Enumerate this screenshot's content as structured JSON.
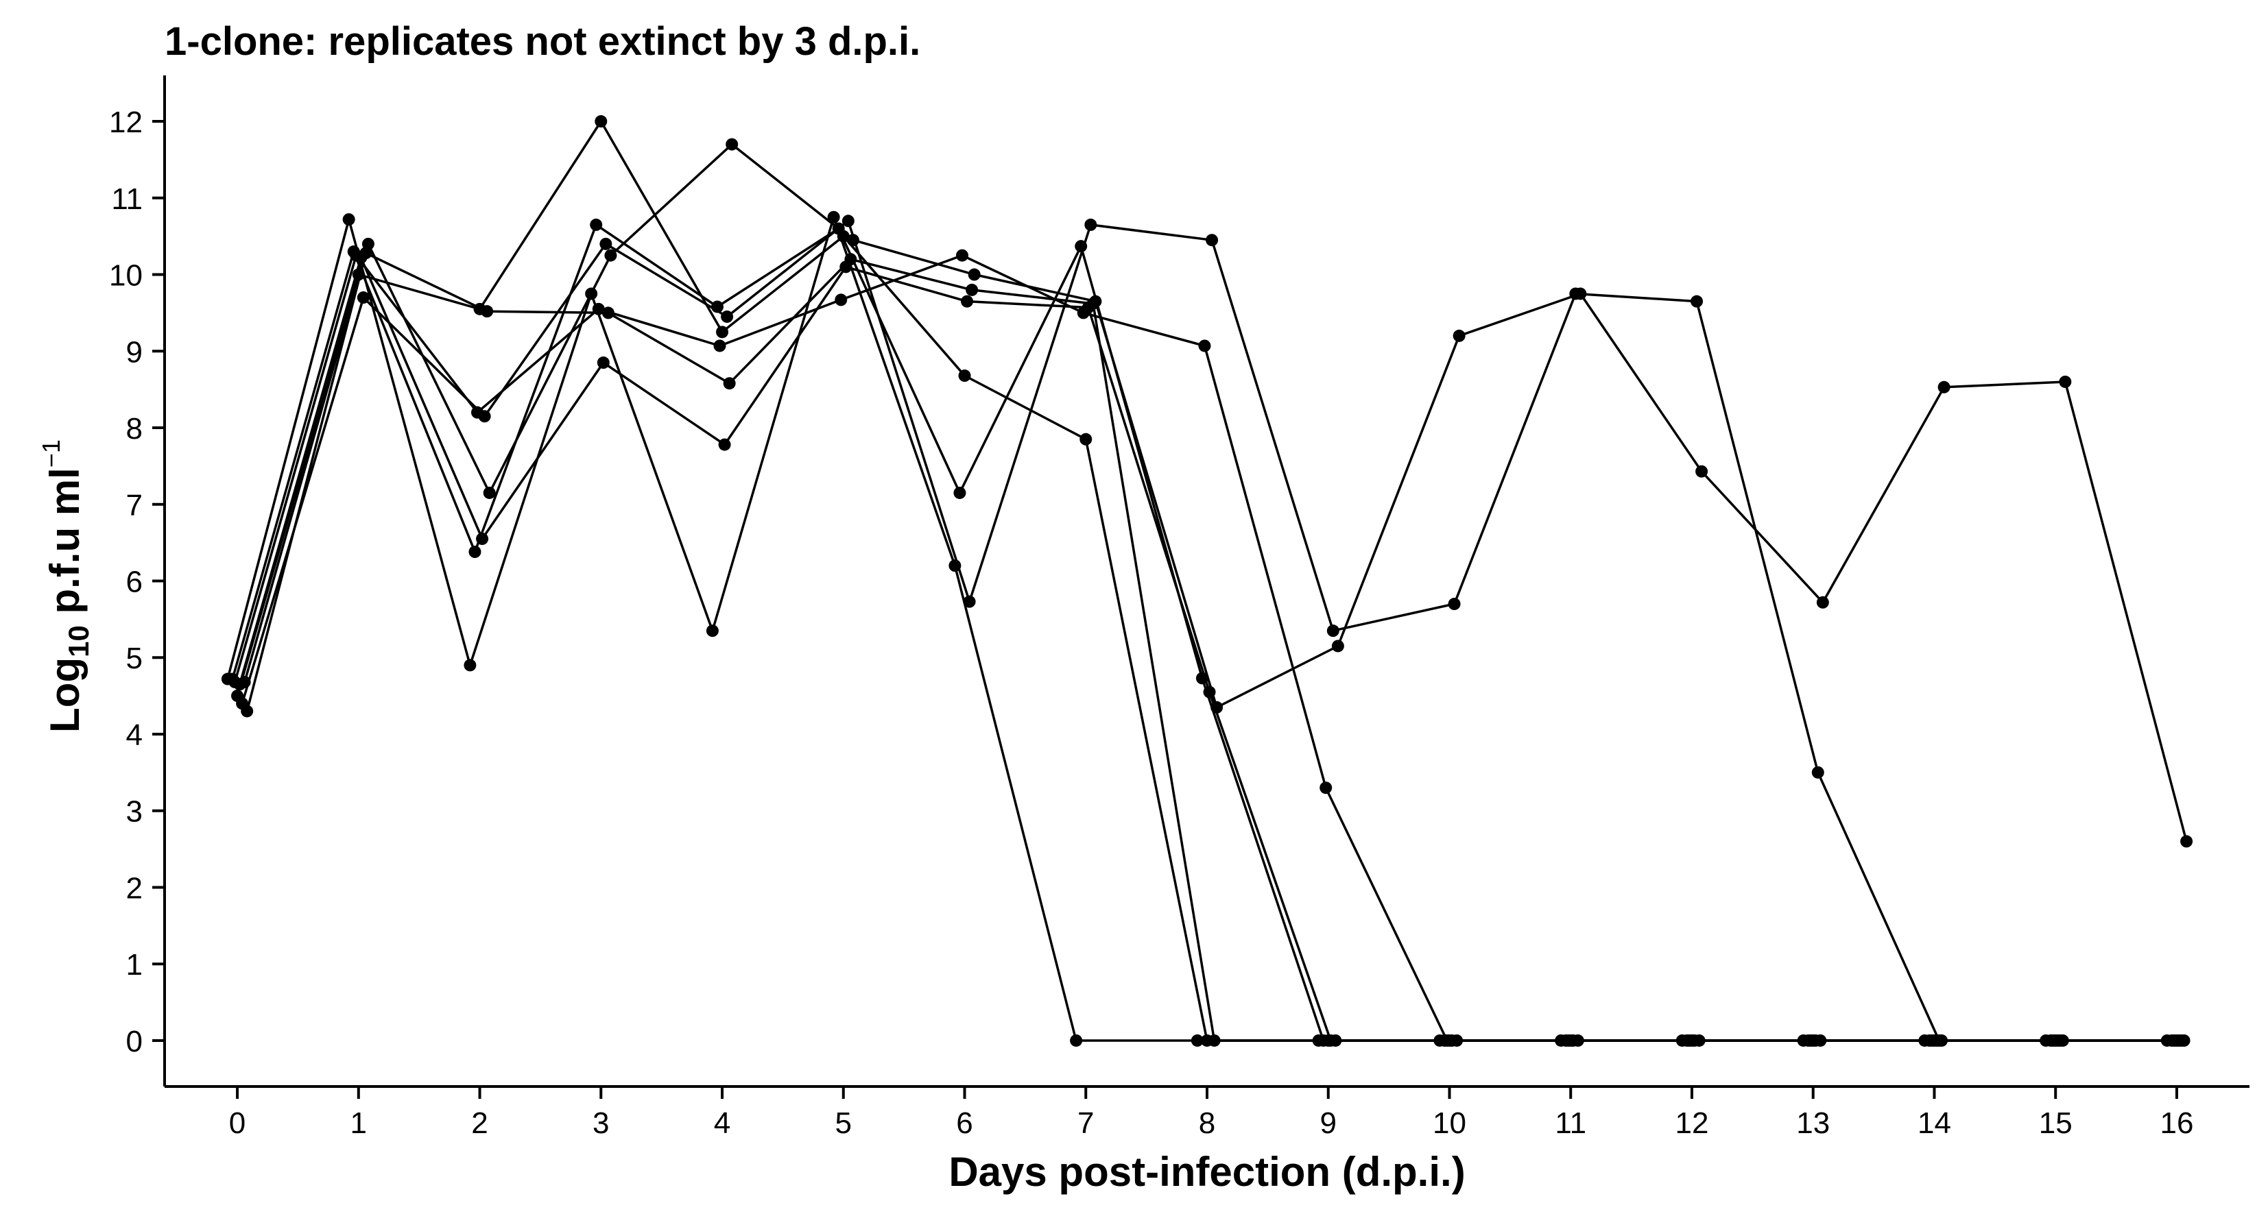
{
  "chart_data": {
    "type": "line",
    "title": "1-clone: replicates not extinct by 3 d.p.i.",
    "xlabel": "Days post-infection (d.p.i.)",
    "ylabel": {
      "main": "Log",
      "sub": "10",
      "rest": " p.f.u ml",
      "sup": "−1"
    },
    "x_ticks": [
      0,
      1,
      2,
      3,
      4,
      5,
      6,
      7,
      8,
      9,
      10,
      11,
      12,
      13,
      14,
      15,
      16
    ],
    "y_ticks": [
      0,
      1,
      2,
      3,
      4,
      5,
      6,
      7,
      8,
      9,
      10,
      11,
      12
    ],
    "xlim": [
      -0.6,
      16.6
    ],
    "ylim": [
      -0.6,
      12.6
    ],
    "grid": false,
    "legend": "none",
    "color": "#000000",
    "series": [
      {
        "x": [
          -0.08,
          0.92,
          1.92,
          2.92,
          3.92,
          4.92,
          5.92,
          6.92,
          7.92,
          8.92,
          9.92,
          10.92,
          11.92,
          12.92,
          13.92,
          14.92,
          15.92
        ],
        "y": [
          4.72,
          10.72,
          4.9,
          9.75,
          5.35,
          10.75,
          6.2,
          0,
          0,
          0,
          0,
          0,
          0,
          0,
          0,
          0,
          0
        ]
      },
      {
        "x": [
          -0.04,
          0.96,
          1.96,
          2.96,
          3.96,
          4.96,
          5.96,
          6.96,
          7.96,
          8.96,
          9.96,
          10.96,
          11.96,
          12.96,
          13.96,
          14.96,
          15.96
        ],
        "y": [
          4.72,
          10.3,
          6.38,
          10.65,
          9.58,
          10.6,
          7.15,
          10.37,
          4.73,
          0,
          0,
          0,
          0,
          0,
          0,
          0,
          0
        ]
      },
      {
        "x": [
          0.0,
          1.0,
          2.0,
          3.0,
          4.0,
          5.0,
          6.0,
          7.0,
          8.0,
          9.0,
          10.0,
          11.0,
          12.0,
          13.0,
          14.0,
          15.0,
          16.0
        ],
        "y": [
          4.5,
          10.0,
          9.55,
          12.0,
          9.25,
          10.5,
          8.68,
          7.85,
          0,
          0,
          0,
          0,
          0,
          0,
          0,
          0,
          0
        ]
      },
      {
        "x": [
          0.04,
          1.04,
          2.04,
          3.04,
          4.04,
          5.04,
          6.04,
          7.04,
          8.04,
          9.04,
          10.04,
          11.04,
          12.04,
          13.04,
          14.04,
          15.04,
          16.04
        ],
        "y": [
          4.4,
          9.7,
          8.15,
          10.4,
          9.45,
          10.7,
          5.73,
          10.65,
          10.45,
          5.35,
          5.7,
          9.75,
          9.65,
          3.5,
          0,
          0,
          0
        ]
      },
      {
        "x": [
          0.08,
          1.08,
          2.08,
          3.08,
          4.08,
          5.08,
          6.08,
          7.08,
          8.08,
          9.08,
          10.08,
          11.08,
          12.08,
          13.08,
          14.08,
          15.08,
          16.08
        ],
        "y": [
          4.3,
          10.4,
          7.15,
          10.25,
          11.7,
          10.45,
          10.0,
          9.65,
          4.35,
          5.15,
          9.2,
          9.75,
          7.43,
          5.72,
          8.53,
          8.6,
          2.6
        ]
      },
      {
        "x": [
          -0.02,
          0.98,
          1.98,
          2.98,
          3.98,
          4.98,
          5.98,
          6.98,
          7.98,
          8.98,
          9.98,
          10.98,
          11.98,
          12.98,
          13.98,
          14.98,
          15.98
        ],
        "y": [
          4.68,
          10.25,
          8.2,
          9.55,
          9.07,
          9.67,
          10.25,
          9.5,
          9.07,
          3.3,
          0,
          0,
          0,
          0,
          0,
          0,
          0
        ]
      },
      {
        "x": [
          0.02,
          1.02,
          2.02,
          3.02,
          4.02,
          5.02,
          6.02,
          7.02,
          8.02,
          9.02,
          10.02,
          11.02,
          12.02,
          13.02,
          14.02,
          15.02,
          16.02
        ],
        "y": [
          4.65,
          10.22,
          6.55,
          8.85,
          7.78,
          10.1,
          9.65,
          9.57,
          4.55,
          0,
          0,
          0,
          0,
          0,
          0,
          0,
          0
        ]
      },
      {
        "x": [
          0.06,
          1.06,
          2.06,
          3.06,
          4.06,
          5.06,
          6.06,
          7.06,
          8.06,
          9.06,
          10.06,
          11.06,
          12.06,
          13.06,
          14.06,
          15.06,
          16.06
        ],
        "y": [
          4.68,
          10.28,
          9.52,
          9.5,
          8.58,
          10.2,
          9.8,
          9.62,
          0,
          0,
          0,
          0,
          0,
          0,
          0,
          0,
          0
        ]
      }
    ]
  }
}
